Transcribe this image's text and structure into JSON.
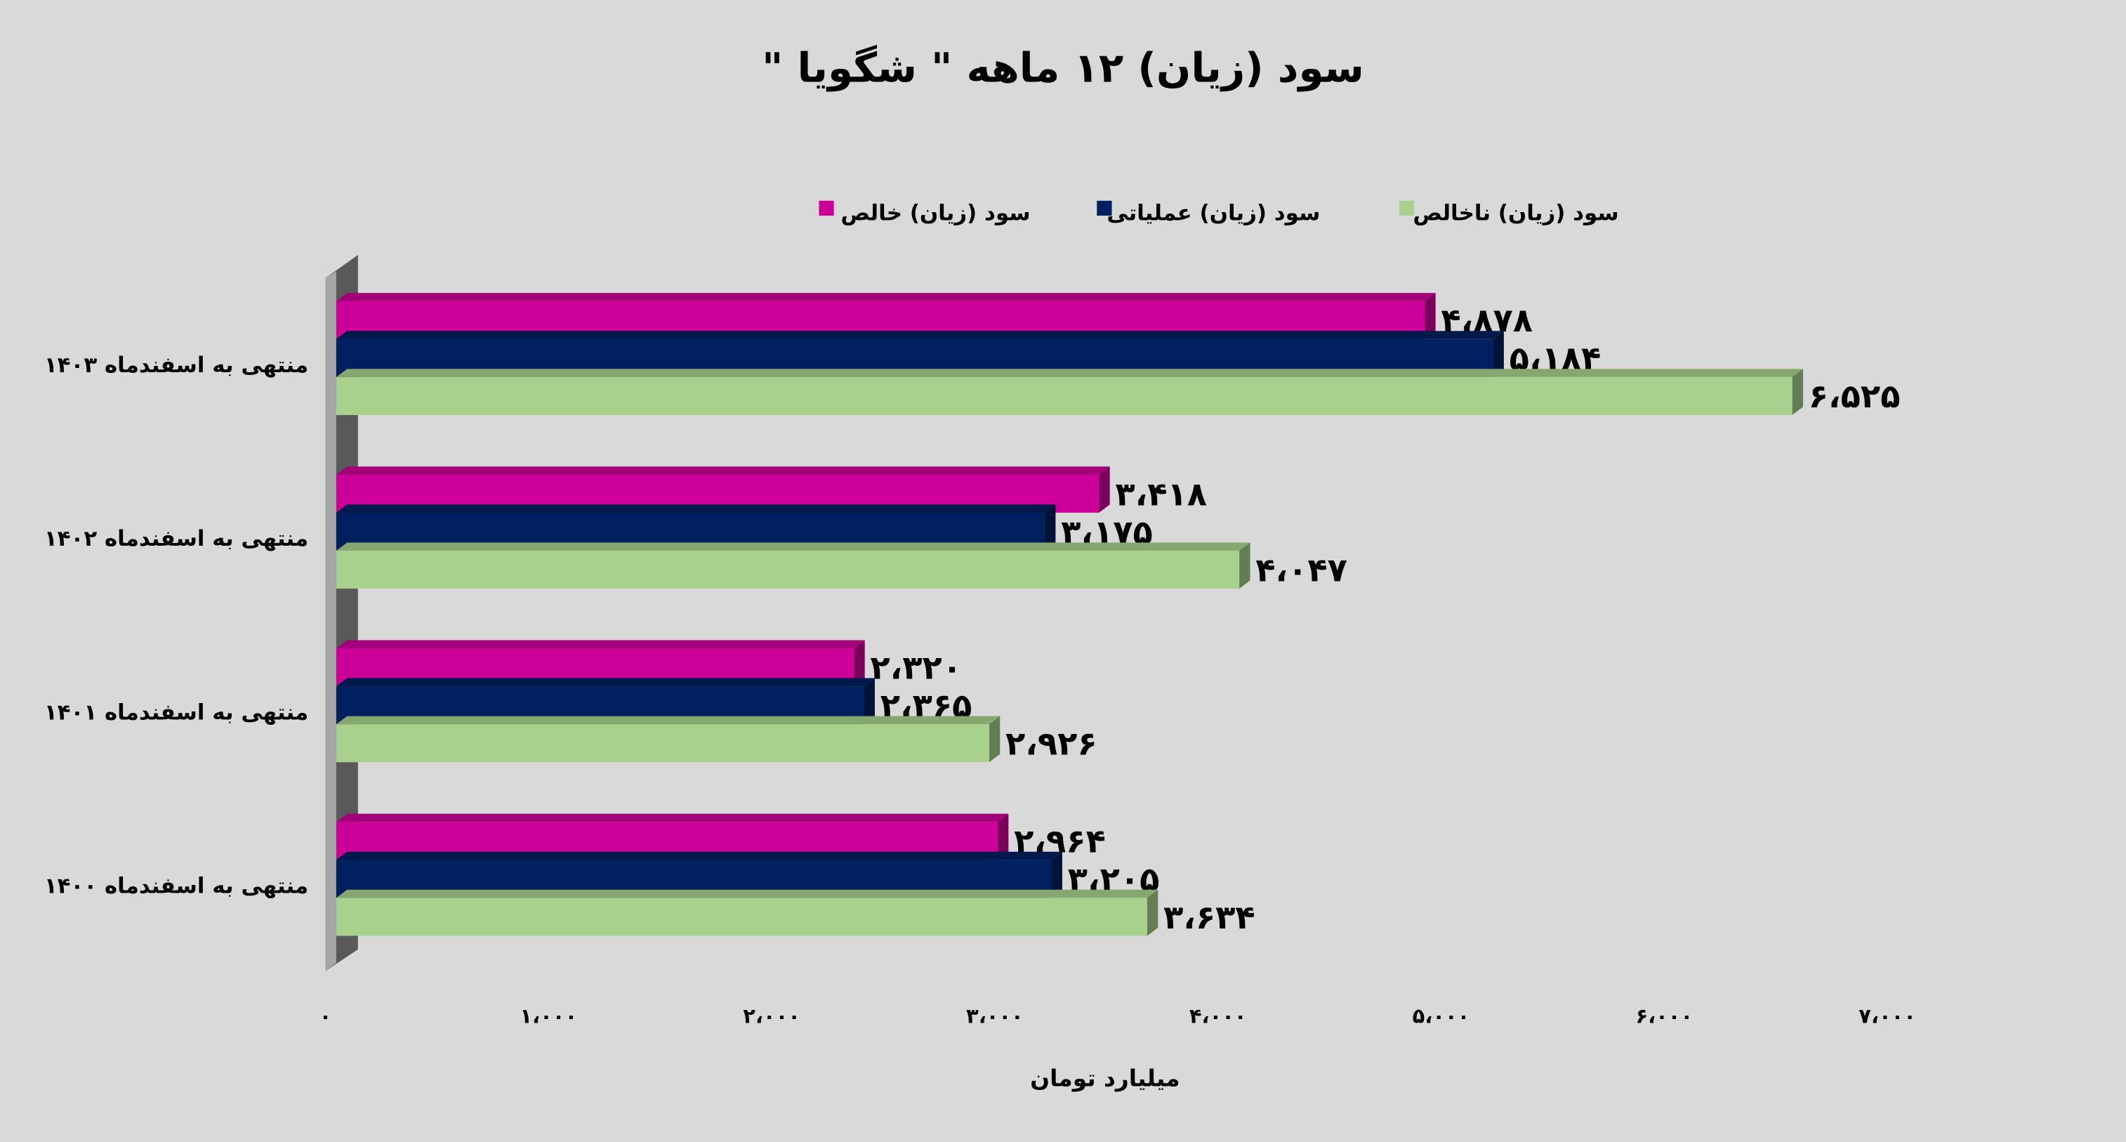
{
  "chart_data": {
    "type": "hbar",
    "title": "سود (زیان) ۱۲ ماهه \" شگویا \"",
    "x_label": "میلیارد تومان",
    "categories": [
      "منتهی به اسفندماه ۱۴۰۳",
      "منتهی به اسفندماه ۱۴۰۲",
      "منتهی به اسفندماه ۱۴۰۱",
      "منتهی به اسفندماه ۱۴۰۰"
    ],
    "series": [
      {
        "name": "سود (زیان) خالص",
        "color": "#cc0099",
        "values": [
          4878,
          3418,
          2320,
          2964
        ],
        "value_labels": [
          "۴،۸۷۸",
          "۳،۴۱۸",
          "۲،۳۲۰",
          "۲،۹۶۴"
        ]
      },
      {
        "name": "سود (زیان) عملیاتی",
        "color": "#002060",
        "values": [
          5184,
          3175,
          2365,
          3205
        ],
        "value_labels": [
          "۵،۱۸۴",
          "۳،۱۷۵",
          "۲،۳۶۵",
          "۳،۲۰۵"
        ]
      },
      {
        "name": "سود (زیان) ناخالص",
        "color": "#a9d18e",
        "values": [
          6525,
          4047,
          2926,
          3634
        ],
        "value_labels": [
          "۶،۵۲۵",
          "۴،۰۴۷",
          "۲،۹۲۶",
          "۳،۶۳۴"
        ]
      }
    ],
    "xlim": [
      0,
      7000
    ],
    "xticks": [
      {
        "value": 0,
        "label": "۰"
      },
      {
        "value": 1000,
        "label": "۱،۰۰۰"
      },
      {
        "value": 2000,
        "label": "۲،۰۰۰"
      },
      {
        "value": 3000,
        "label": "۳،۰۰۰"
      },
      {
        "value": 4000,
        "label": "۴،۰۰۰"
      },
      {
        "value": 5000,
        "label": "۵،۰۰۰"
      },
      {
        "value": 6000,
        "label": "۶،۰۰۰"
      },
      {
        "value": 7000,
        "label": "۷،۰۰۰"
      }
    ],
    "legend": "top"
  }
}
